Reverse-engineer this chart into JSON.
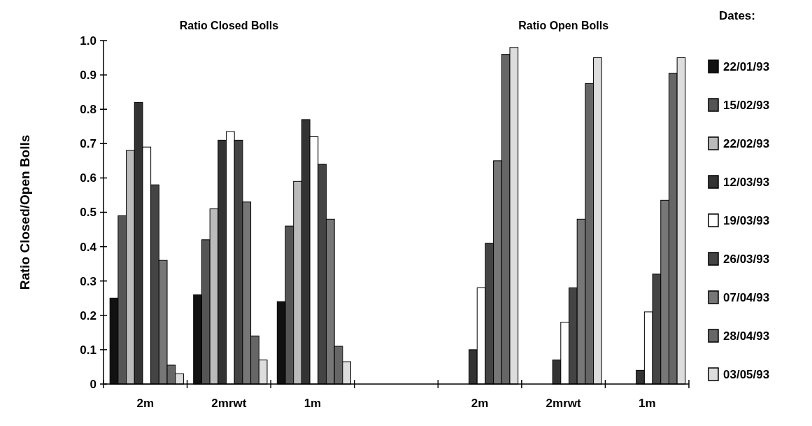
{
  "chart_data": {
    "type": "bar",
    "ylabel": "Ratio Closed/Open Bolls",
    "legend_title": "Dates:",
    "legend": "right",
    "annotations": [
      "Ratio Closed Bolls",
      "Ratio Open Bolls"
    ],
    "categories": [
      "2m",
      "2mrwt",
      "1m",
      null,
      "2m",
      "2mrwt",
      "1m"
    ],
    "ylim": [
      0,
      1
    ],
    "yticks": [
      0,
      {
        "value": 0.1,
        "label": "0.1"
      },
      {
        "value": 0.2,
        "label": "0.2"
      },
      {
        "value": 0.3,
        "label": "0.3"
      },
      {
        "value": 0.4,
        "label": "0.4"
      },
      {
        "value": 0.5,
        "label": "0.5"
      },
      {
        "value": 0.6,
        "label": "0.6"
      },
      {
        "value": 0.7,
        "label": "0.7"
      },
      {
        "value": 0.8,
        "label": "0.8"
      },
      {
        "value": 0.9,
        "label": "0.9"
      },
      {
        "value": 1,
        "label": "1.0"
      }
    ],
    "series": [
      {
        "name": "22/01/93",
        "color": "#111111",
        "values": [
          0.25,
          0.26,
          0.24,
          null,
          0,
          0,
          0
        ]
      },
      {
        "name": "15/02/93",
        "color": "#555555",
        "values": [
          0.49,
          0.42,
          0.46,
          null,
          0,
          0,
          0
        ]
      },
      {
        "name": "22/02/93",
        "color": "#bbbbbb",
        "values": [
          0.68,
          0.51,
          0.59,
          null,
          0,
          0,
          0
        ]
      },
      {
        "name": "12/03/93",
        "color": "#333333",
        "values": [
          0.82,
          0.71,
          0.77,
          null,
          0.1,
          0.07,
          0.04
        ]
      },
      {
        "name": "19/03/93",
        "color": "#ffffff",
        "values": [
          0.69,
          0.735,
          0.72,
          null,
          0.28,
          0.18,
          0.21
        ]
      },
      {
        "name": "26/03/93",
        "color": "#444444",
        "values": [
          0.58,
          0.71,
          0.64,
          null,
          0.41,
          0.28,
          0.32
        ]
      },
      {
        "name": "07/04/93",
        "color": "#777777",
        "values": [
          0.36,
          0.53,
          0.48,
          null,
          0.65,
          0.48,
          0.535
        ]
      },
      {
        "name": "28/04/93",
        "color": "#666666",
        "values": [
          0.055,
          0.14,
          0.11,
          null,
          0.96,
          0.875,
          0.905
        ]
      },
      {
        "name": "03/05/93",
        "color": "#dddddd",
        "values": [
          0.03,
          0.07,
          0.065,
          null,
          0.98,
          0.95,
          0.95
        ]
      }
    ]
  }
}
